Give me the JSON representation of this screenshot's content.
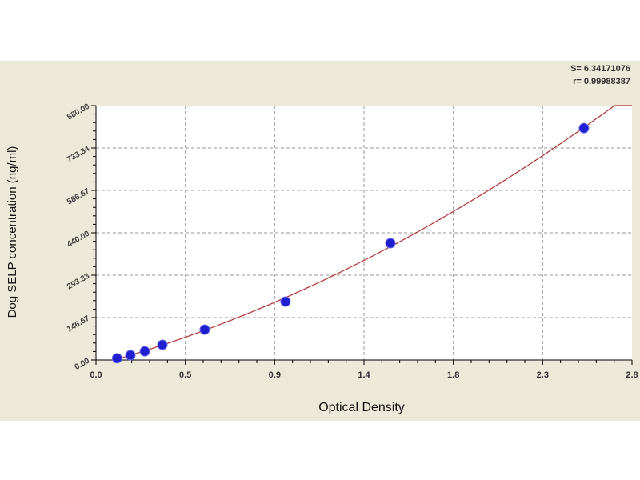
{
  "chart_data": {
    "type": "scatter",
    "title": "",
    "xlabel": "Optical Density",
    "ylabel": "Dog SELP concentration (ng/ml)",
    "xlim": [
      0,
      2.8
    ],
    "ylim": [
      0,
      880
    ],
    "x_ticks": [
      "0.0",
      "0.5",
      "0.9",
      "1.4",
      "1.8",
      "2.3",
      "2.8"
    ],
    "y_ticks": [
      "0.00",
      "146.67",
      "293.33",
      "440.00",
      "586.67",
      "733.34",
      "880.00"
    ],
    "grid": true,
    "points": {
      "x": [
        0.11,
        0.18,
        0.255,
        0.347,
        0.568,
        0.99,
        1.538,
        2.549
      ],
      "y": [
        6,
        16.6,
        30,
        52.6,
        105,
        202,
        404,
        802
      ]
    },
    "fit_curve": true,
    "stats": {
      "s": "S= 6.34171076",
      "r": "r= 0.99988387"
    },
    "colors": {
      "points": "#1f1fd0",
      "curve": "#b03030",
      "background": "#ece9d8",
      "grid": "#999999"
    }
  }
}
